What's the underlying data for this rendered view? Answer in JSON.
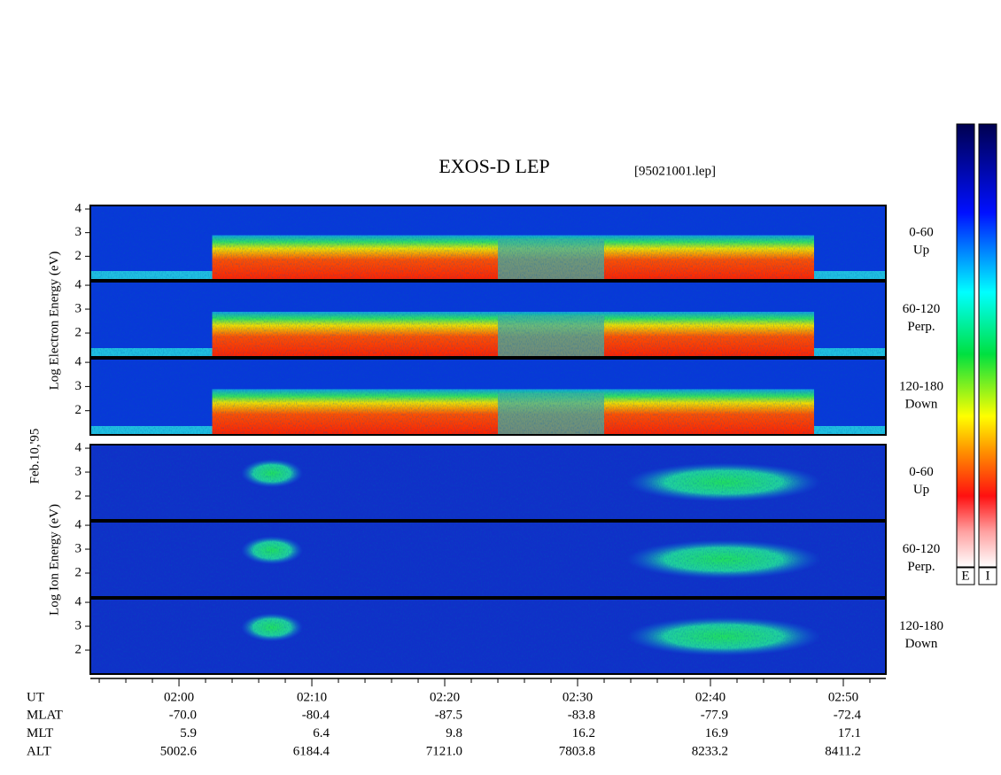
{
  "chart_data": {
    "type": "spectrogram",
    "title": "EXOS-D LEP",
    "subtitle": "[95021001.lep]",
    "date_label": "Feb.10,'95",
    "xlim": [
      113.33,
      173.2
    ],
    "xticks": [
      {
        "value": 120,
        "label": "02:00"
      },
      {
        "value": 130,
        "label": "02:10"
      },
      {
        "value": 140,
        "label": "02:20"
      },
      {
        "value": 150,
        "label": "02:30"
      },
      {
        "value": 160,
        "label": "02:40"
      },
      {
        "value": 170,
        "label": "02:50"
      }
    ],
    "xminorticks": [
      114,
      116,
      118,
      122,
      124,
      126,
      128,
      132,
      134,
      136,
      138,
      142,
      144,
      146,
      148,
      152,
      154,
      156,
      158,
      162,
      164,
      166,
      168,
      172
    ],
    "groups": [
      {
        "ylabel": "Log Electron Energy (eV)",
        "colorbar_label": "E",
        "species": "electron",
        "panels": [
          {
            "range": "0-60",
            "direction": "Up",
            "ylim": [
              1,
              4.15
            ],
            "yticks": [
              2,
              3,
              4
            ]
          },
          {
            "range": "60-120",
            "direction": "Perp.",
            "ylim": [
              1,
              4.15
            ],
            "yticks": [
              2,
              3,
              4
            ]
          },
          {
            "range": "120-180",
            "direction": "Down",
            "ylim": [
              1,
              4.15
            ],
            "yticks": [
              2,
              3,
              4
            ]
          }
        ]
      },
      {
        "ylabel": "Log Ion Energy (eV)",
        "colorbar_label": "I",
        "species": "ion",
        "panels": [
          {
            "range": "0-60",
            "direction": "Up",
            "ylim": [
              1,
              4.15
            ],
            "yticks": [
              2,
              3,
              4
            ]
          },
          {
            "range": "60-120",
            "direction": "Perp.",
            "ylim": [
              1,
              4.15
            ],
            "yticks": [
              2,
              3,
              4
            ]
          },
          {
            "range": "120-180",
            "direction": "Down",
            "ylim": [
              1,
              4.15
            ],
            "yticks": [
              2,
              3,
              4
            ]
          }
        ]
      }
    ],
    "time_label": "UT",
    "orbit_table": {
      "rows": [
        {
          "label": "MLAT",
          "values": [
            "-70.0",
            "-80.4",
            "-87.5",
            "-83.8",
            "-77.9",
            "-72.4"
          ]
        },
        {
          "label": "MLT",
          "values": [
            "5.9",
            "6.4",
            "9.8",
            "16.2",
            "16.9",
            "17.1"
          ]
        },
        {
          "label": "ALT",
          "values": [
            "5002.6",
            "6184.4",
            "7121.0",
            "7803.8",
            "8233.2",
            "8411.2"
          ]
        }
      ]
    }
  }
}
